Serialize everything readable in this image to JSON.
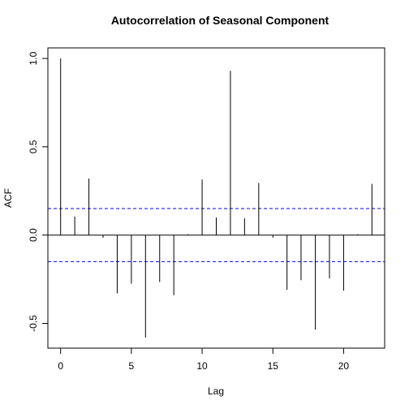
{
  "chart_data": {
    "type": "bar",
    "title": "Autocorrelation of Seasonal Component",
    "xlabel": "Lag",
    "ylabel": "ACF",
    "xlim": [
      -0.9,
      22.9
    ],
    "ylim": [
      -0.64,
      1.06
    ],
    "x_ticks": [
      0,
      5,
      10,
      15,
      20
    ],
    "x_tick_labels": [
      "0",
      "5",
      "10",
      "15",
      "20"
    ],
    "y_ticks": [
      -0.5,
      0.0,
      0.5,
      1.0
    ],
    "y_tick_labels": [
      "-0.5",
      "0.0",
      "0.5",
      "1.0"
    ],
    "lags": [
      0,
      1,
      2,
      3,
      4,
      5,
      6,
      7,
      8,
      9,
      10,
      11,
      12,
      13,
      14,
      15,
      16,
      16.99,
      18,
      19,
      20,
      21,
      22
    ],
    "values": [
      1.0,
      0.105,
      0.32,
      -0.015,
      -0.33,
      -0.275,
      -0.58,
      -0.265,
      -0.34,
      0.005,
      0.315,
      0.1,
      0.93,
      0.095,
      0.295,
      -0.015,
      -0.31,
      -0.255,
      -0.535,
      -0.245,
      -0.315,
      0.005,
      0.29
    ],
    "confidence_bounds": [
      0.15,
      -0.15
    ],
    "confidence_line_color": "#0000ff",
    "grid": false,
    "legend": "none"
  }
}
